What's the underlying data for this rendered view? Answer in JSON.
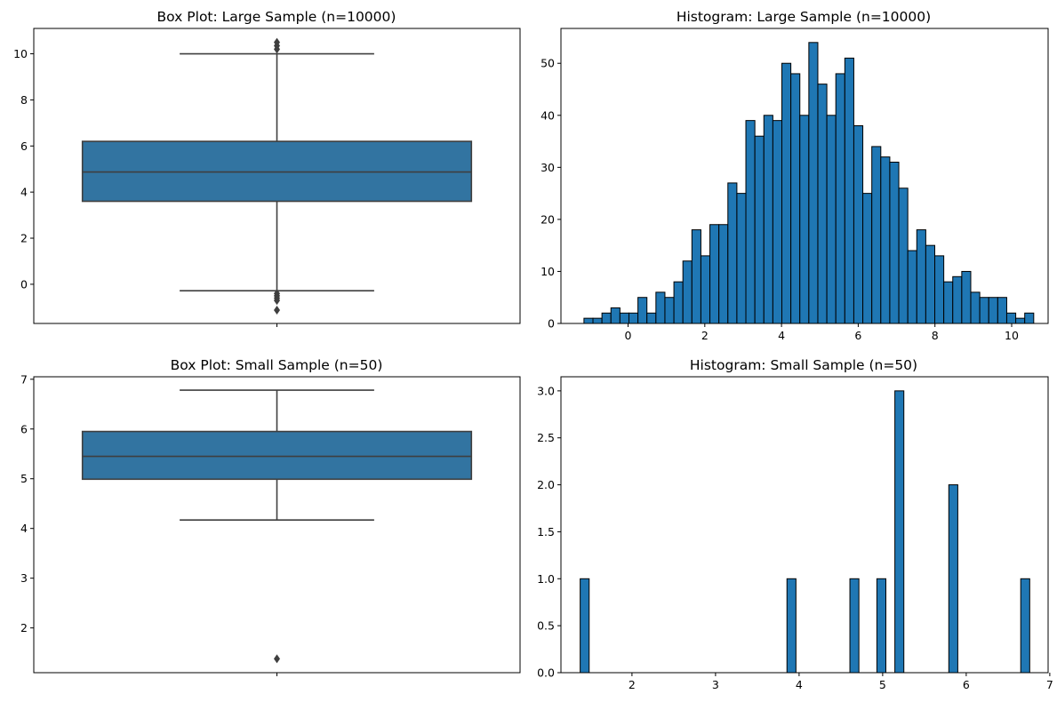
{
  "chart_data": [
    {
      "id": "box-large",
      "type": "box",
      "title": "Box Plot: Large Sample (n=10000)",
      "ylim": [
        -1.7,
        11.1
      ],
      "yticks": [
        0,
        2,
        4,
        6,
        8,
        10
      ],
      "stats": {
        "whisker_low": -0.28,
        "q1": 3.6,
        "median": 4.87,
        "q3": 6.2,
        "whisker_high": 10.0
      },
      "outliers": [
        10.5,
        10.35,
        10.2,
        -0.4,
        -0.5,
        -0.6,
        -0.7,
        -1.12
      ],
      "color": "#3274a1"
    },
    {
      "id": "hist-large",
      "type": "histogram",
      "title": "Histogram: Large Sample (n=10000)",
      "xlim": [
        -1.75,
        10.95
      ],
      "ylim": [
        0,
        56.7
      ],
      "xticks": [
        0,
        2,
        4,
        6,
        8,
        10
      ],
      "yticks": [
        0,
        10,
        20,
        30,
        40,
        50
      ],
      "bin_start": -1.15,
      "bin_width": 0.2345,
      "values": [
        1,
        1,
        2,
        3,
        2,
        2,
        5,
        2,
        6,
        5,
        8,
        12,
        18,
        13,
        19,
        19,
        27,
        25,
        39,
        36,
        40,
        39,
        50,
        48,
        40,
        54,
        46,
        40,
        48,
        51,
        38,
        25,
        34,
        32,
        31,
        26,
        14,
        18,
        15,
        13,
        8,
        9,
        10,
        6,
        5,
        5,
        5,
        2,
        1,
        2
      ],
      "color": "#1f77b4"
    },
    {
      "id": "box-small",
      "type": "box",
      "title": "Box Plot: Small Sample (n=50)",
      "ylim": [
        1.1,
        7.05
      ],
      "yticks": [
        2,
        3,
        4,
        5,
        6,
        7
      ],
      "stats": {
        "whisker_low": 4.17,
        "q1": 4.99,
        "median": 5.45,
        "q3": 5.95,
        "whisker_high": 6.78
      },
      "outliers": [
        1.38
      ],
      "color": "#3274a1"
    },
    {
      "id": "hist-small",
      "type": "histogram",
      "title": "Histogram: Small Sample (n=50)",
      "xlim": [
        1.15,
        6.98
      ],
      "ylim": [
        0,
        3.15
      ],
      "xticks": [
        2,
        3,
        4,
        5,
        6,
        7
      ],
      "yticks": [
        0.0,
        0.5,
        1.0,
        1.5,
        2.0,
        2.5,
        3.0
      ],
      "bin_start": 1.38,
      "bin_width": 0.1076,
      "values": [
        1,
        0,
        0,
        0,
        0,
        0,
        0,
        0,
        0,
        0,
        0,
        0,
        0,
        0,
        0,
        0,
        0,
        0,
        0,
        0,
        0,
        0,
        0,
        1,
        0,
        0,
        0,
        0,
        0,
        0,
        1,
        0,
        0,
        1,
        0,
        3,
        0,
        0,
        0,
        0,
        0,
        2,
        0,
        0,
        0,
        0,
        0,
        0,
        0,
        1
      ],
      "color": "#1f77b4"
    }
  ]
}
